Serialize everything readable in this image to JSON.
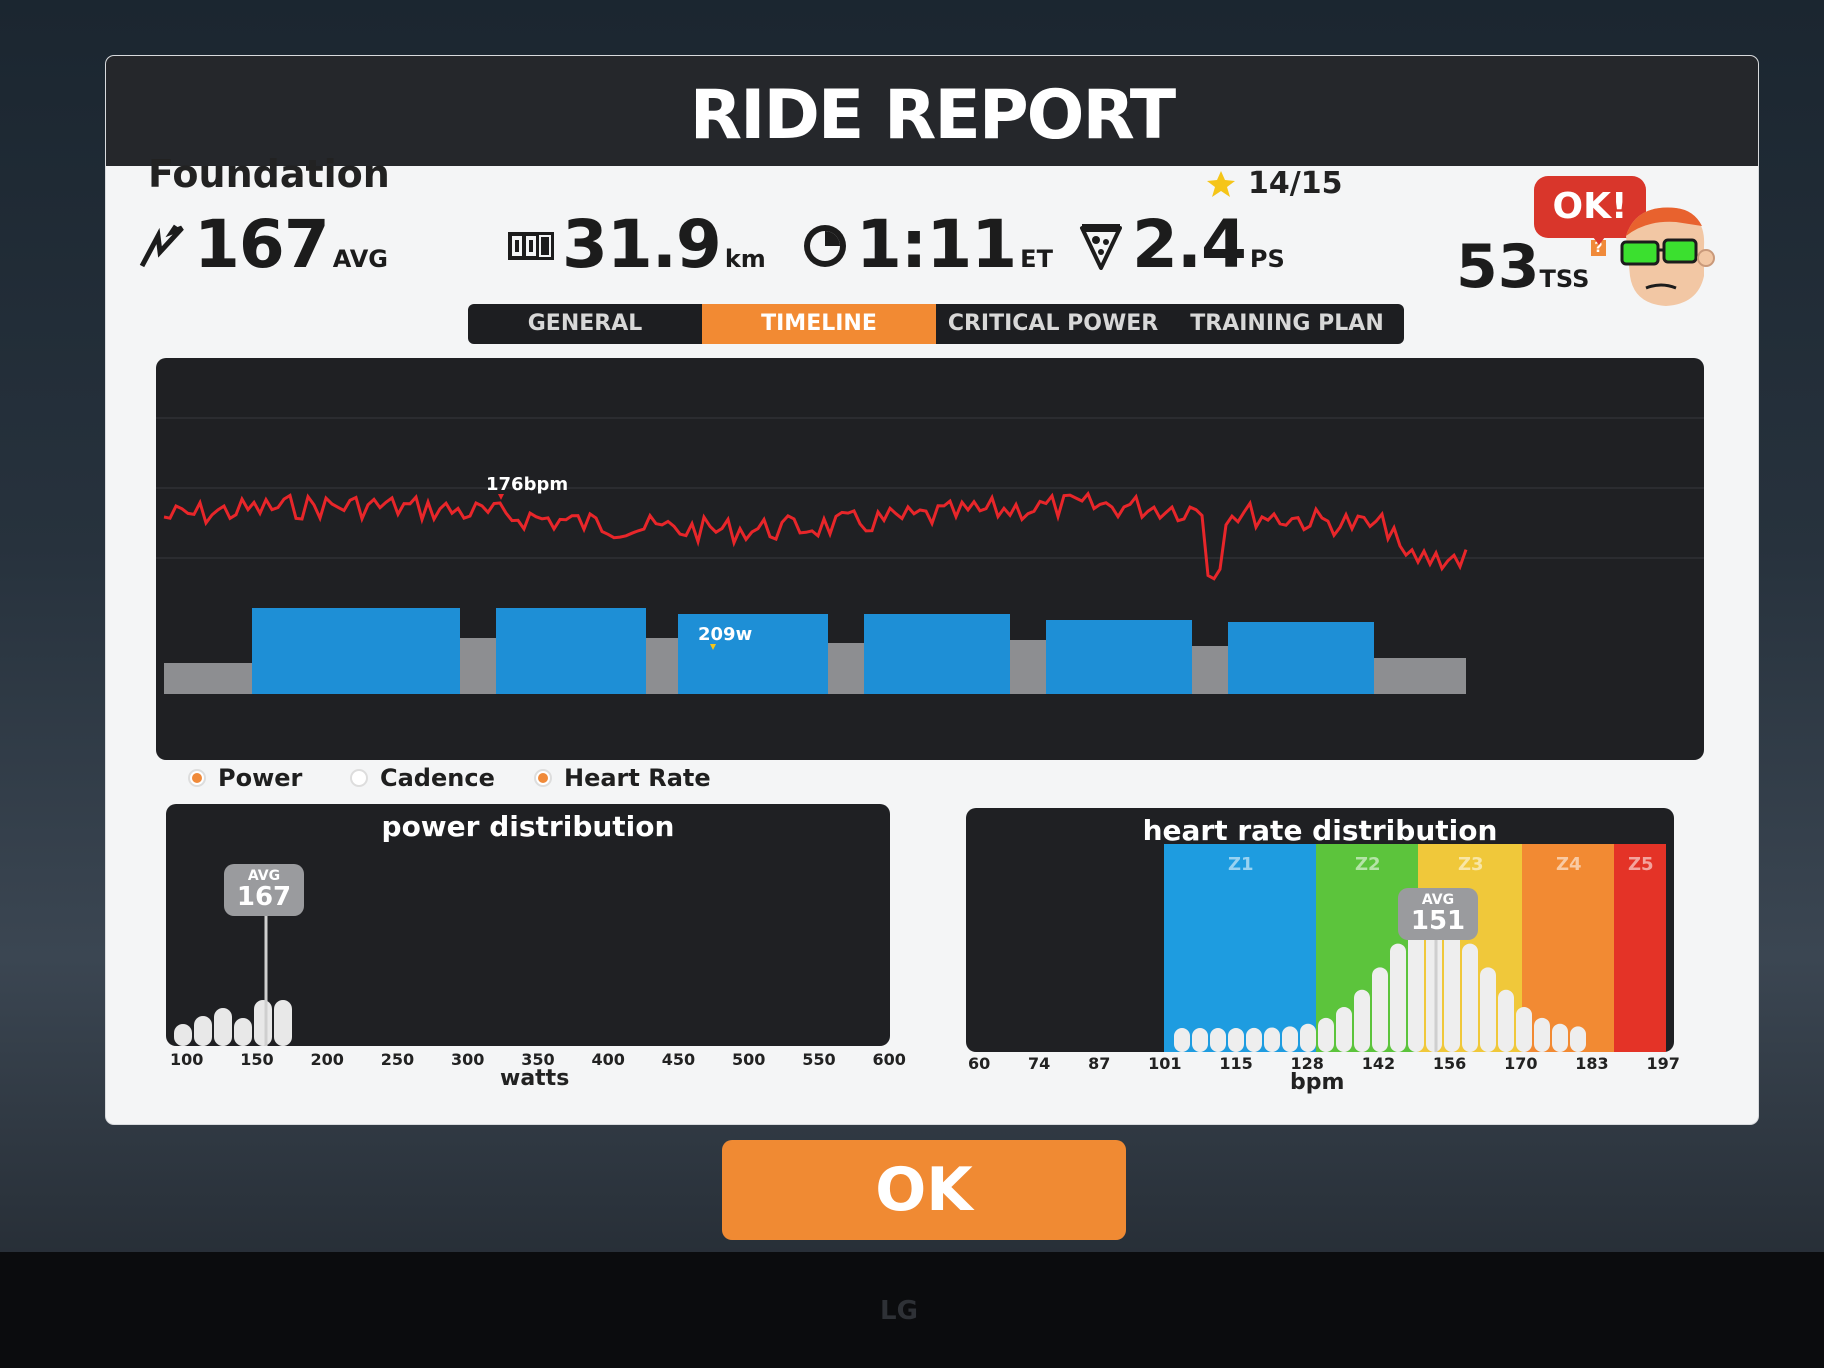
{
  "dialog": {
    "title": "RIDE REPORT",
    "workout_name": "Foundation"
  },
  "stats": {
    "power": {
      "value": "167",
      "unit": "AVG"
    },
    "distance": {
      "value": "31.9",
      "unit": "km"
    },
    "time": {
      "value": "1:11",
      "unit": "ET"
    },
    "pizza": {
      "value": "2.4",
      "unit": "PS"
    },
    "stars": "14/15",
    "tss": {
      "value": "53",
      "unit": "TSS",
      "help": "?"
    }
  },
  "speech_bubble": "OK!",
  "tabs": [
    {
      "label": "GENERAL",
      "active": false
    },
    {
      "label": "TIMELINE",
      "active": true
    },
    {
      "label": "CRITICAL POWER",
      "active": false
    },
    {
      "label": "TRAINING PLAN",
      "active": false
    }
  ],
  "timeline": {
    "max_hr_label": "176bpm",
    "max_power_label": "209w"
  },
  "legend": [
    {
      "label": "Power",
      "checked": true
    },
    {
      "label": "Cadence",
      "checked": false
    },
    {
      "label": "Heart Rate",
      "checked": true
    }
  ],
  "power_distribution": {
    "title": "power distribution",
    "avg_label": "AVG",
    "avg_value": "167",
    "ticks": [
      "100",
      "150",
      "200",
      "250",
      "300",
      "350",
      "400",
      "450",
      "500",
      "550",
      "600"
    ],
    "axis_label": "watts"
  },
  "hr_distribution": {
    "title": "heart rate distribution",
    "avg_label": "AVG",
    "avg_value": "151",
    "zones": [
      "Z1",
      "Z2",
      "Z3",
      "Z4",
      "Z5"
    ],
    "ticks": [
      "60",
      "74",
      "87",
      "101",
      "115",
      "128",
      "142",
      "156",
      "170",
      "183",
      "197"
    ],
    "axis_label": "bpm"
  },
  "ok_button": "OK",
  "monitor_brand": "LG",
  "colors": {
    "accent": "#f28a33",
    "hr_line": "#e8262a",
    "power_zone_blue": "#1e8fd6",
    "power_grey": "#8d8e91",
    "zone_blue": "#1e9ce0",
    "zone_green": "#5cc43c",
    "zone_yellow": "#f0c83a",
    "zone_orange": "#f28a33",
    "zone_red": "#e43327"
  }
}
